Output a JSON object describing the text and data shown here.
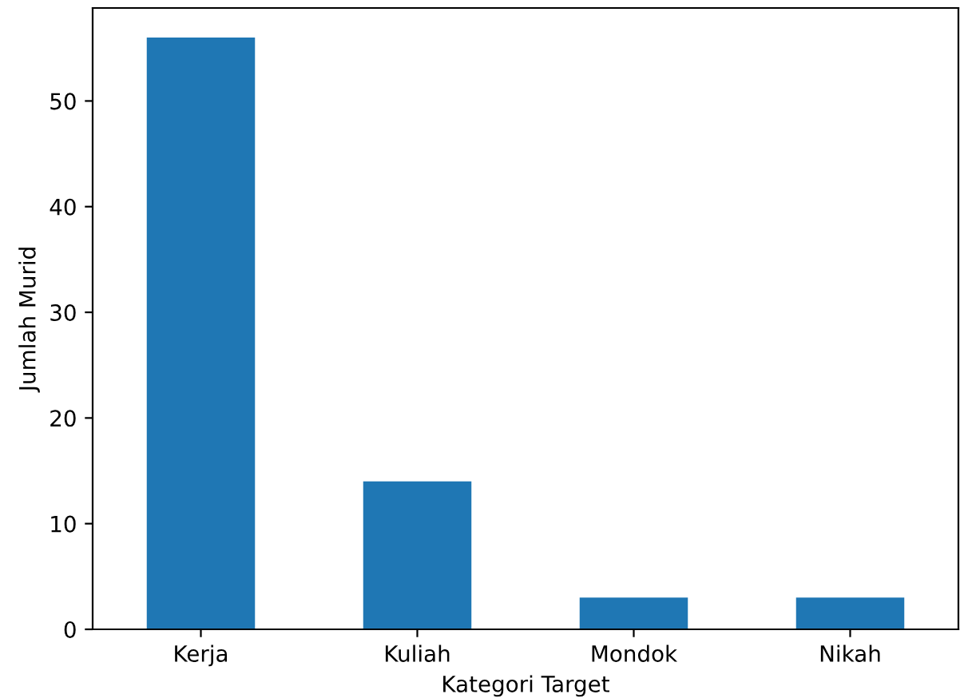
{
  "chart_data": {
    "type": "bar",
    "xlabel": "Kategori Target",
    "ylabel": "Jumlah Murid",
    "categories": [
      "Kerja",
      "Kuliah",
      "Mondok",
      "Nikah"
    ],
    "values": [
      56,
      14,
      3,
      3
    ],
    "color": "#1f77b4",
    "ylim": [
      0,
      58.8
    ],
    "yticks": [
      0,
      10,
      20,
      30,
      40,
      50
    ],
    "grid": false
  }
}
